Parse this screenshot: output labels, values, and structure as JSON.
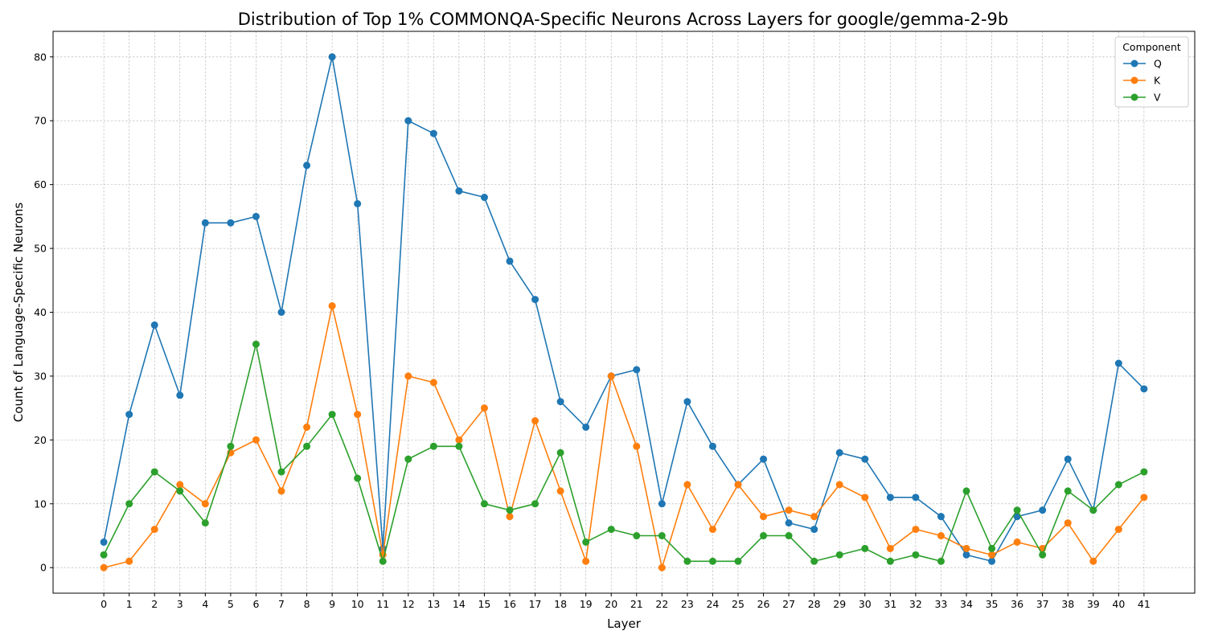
{
  "chart_data": {
    "type": "line",
    "title": "Distribution of Top 1% COMMONQA-Specific Neurons Across Layers for google/gemma-2-9b",
    "xlabel": "Layer",
    "ylabel": "Count of Language-Specific Neurons",
    "x": [
      0,
      1,
      2,
      3,
      4,
      5,
      6,
      7,
      8,
      9,
      10,
      11,
      12,
      13,
      14,
      15,
      16,
      17,
      18,
      19,
      20,
      21,
      22,
      23,
      24,
      25,
      26,
      27,
      28,
      29,
      30,
      31,
      32,
      33,
      34,
      35,
      36,
      37,
      38,
      39,
      40,
      41
    ],
    "xlim": [
      -2,
      43
    ],
    "ylim": [
      -4,
      84
    ],
    "yticks": [
      0,
      10,
      20,
      30,
      40,
      50,
      60,
      70,
      80
    ],
    "grid": true,
    "legend": {
      "title": "Component",
      "placement": "top-right"
    },
    "series": [
      {
        "name": "Q",
        "color": "#1f77b4",
        "values": [
          4,
          24,
          38,
          27,
          54,
          54,
          55,
          40,
          63,
          80,
          57,
          3,
          70,
          68,
          59,
          58,
          48,
          42,
          26,
          22,
          30,
          31,
          10,
          26,
          19,
          13,
          17,
          7,
          6,
          18,
          17,
          11,
          11,
          8,
          2,
          1,
          8,
          9,
          17,
          9,
          32,
          28
        ]
      },
      {
        "name": "K",
        "color": "#ff7f0e",
        "values": [
          0,
          1,
          6,
          13,
          10,
          18,
          20,
          12,
          22,
          41,
          24,
          2,
          30,
          29,
          20,
          25,
          8,
          23,
          12,
          1,
          30,
          19,
          0,
          13,
          6,
          13,
          8,
          9,
          8,
          13,
          11,
          3,
          6,
          5,
          3,
          2,
          4,
          3,
          7,
          1,
          6,
          11
        ]
      },
      {
        "name": "V",
        "color": "#2ca02c",
        "values": [
          2,
          10,
          15,
          12,
          7,
          19,
          35,
          15,
          19,
          24,
          14,
          1,
          17,
          19,
          19,
          10,
          9,
          10,
          18,
          4,
          6,
          5,
          5,
          1,
          1,
          1,
          5,
          5,
          1,
          2,
          3,
          1,
          2,
          1,
          12,
          3,
          9,
          2,
          12,
          9,
          13,
          15
        ]
      }
    ]
  }
}
